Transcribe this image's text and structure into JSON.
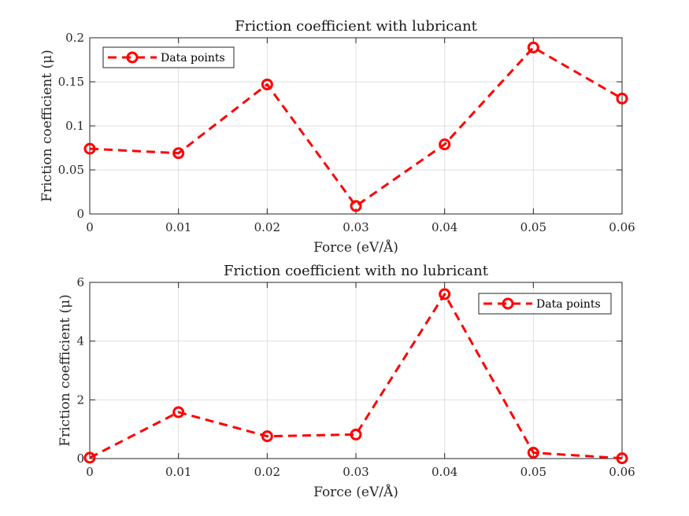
{
  "chart_data": [
    {
      "type": "line",
      "title": "Friction coefficient with lubricant",
      "xlabel": "Force (eV/Å)",
      "ylabel": "Friction coefficient (μ)",
      "x": [
        0,
        0.01,
        0.02,
        0.03,
        0.04,
        0.05,
        0.06
      ],
      "xticks": [
        "0",
        "0.01",
        "0.02",
        "0.03",
        "0.04",
        "0.05",
        "0.06"
      ],
      "xlim": [
        0,
        0.06
      ],
      "ylim": [
        0,
        0.2
      ],
      "yticks": [
        0,
        0.05,
        0.1,
        0.15,
        0.2
      ],
      "ytick_labels": [
        "0",
        "0.05",
        "0.1",
        "0.15",
        "0.2"
      ],
      "grid": true,
      "legend_position": "top-left",
      "series": [
        {
          "name": "Data points",
          "values": [
            0.074,
            0.069,
            0.147,
            0.009,
            0.079,
            0.189,
            0.131
          ],
          "color": "#ff0000",
          "line_style": "dashed",
          "marker": "circle"
        }
      ]
    },
    {
      "type": "line",
      "title": "Friction coefficient with no lubricant",
      "xlabel": "Force (eV/Å)",
      "ylabel": "Friction coefficient (μ)",
      "x": [
        0,
        0.01,
        0.02,
        0.03,
        0.04,
        0.05,
        0.06
      ],
      "xticks": [
        "0",
        "0.01",
        "0.02",
        "0.03",
        "0.04",
        "0.05",
        "0.06"
      ],
      "xlim": [
        0,
        0.06
      ],
      "ylim": [
        0,
        6
      ],
      "yticks": [
        0,
        2,
        4,
        6
      ],
      "ytick_labels": [
        "0",
        "2",
        "4",
        "6"
      ],
      "grid": true,
      "legend_position": "top-right",
      "series": [
        {
          "name": "Data points",
          "values": [
            0.03,
            1.58,
            0.76,
            0.82,
            5.6,
            0.2,
            0.01
          ],
          "color": "#ff0000",
          "line_style": "dashed",
          "marker": "circle"
        }
      ]
    }
  ]
}
